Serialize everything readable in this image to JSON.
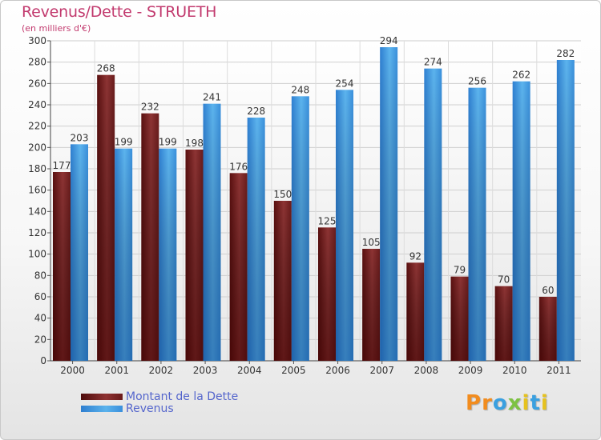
{
  "header": {
    "title": "Revenus/Dette - STRUETH",
    "subtitle": "(en milliers d'€)"
  },
  "colors": {
    "dette": "#7a2020",
    "revenus": "#4ea6e6",
    "title": "#c23a6e",
    "legend_text": "#5566cc"
  },
  "legend": {
    "items": [
      {
        "label": "Montant de la Dette",
        "color": "#6a1a1a"
      },
      {
        "label": "Revenus",
        "color": "#4ea6e6"
      }
    ]
  },
  "logo": {
    "letters": [
      "P",
      "r",
      "o",
      "x",
      "i",
      "t",
      "i"
    ],
    "colors": [
      "#f28c1e",
      "#f28c1e",
      "#3aa0e0",
      "#7dc242",
      "#e6c21e",
      "#3aa0e0",
      "#e6c21e"
    ]
  },
  "chart_data": {
    "type": "bar",
    "title": "Revenus/Dette - STRUETH",
    "subtitle": "(en milliers d'€)",
    "categories": [
      "2000",
      "2001",
      "2002",
      "2003",
      "2004",
      "2005",
      "2006",
      "2007",
      "2008",
      "2009",
      "2010",
      "2011"
    ],
    "series": [
      {
        "name": "Montant de la Dette",
        "values": [
          177,
          268,
          232,
          198,
          176,
          150,
          125,
          105,
          92,
          79,
          70,
          60
        ]
      },
      {
        "name": "Revenus",
        "values": [
          203,
          199,
          199,
          241,
          228,
          248,
          254,
          294,
          274,
          256,
          262,
          282
        ]
      }
    ],
    "ylim": [
      0,
      300
    ],
    "yticks": [
      0,
      20,
      40,
      60,
      80,
      100,
      120,
      140,
      160,
      180,
      200,
      220,
      240,
      260,
      280,
      300
    ],
    "grid": true,
    "legend_position": "bottom-left"
  }
}
